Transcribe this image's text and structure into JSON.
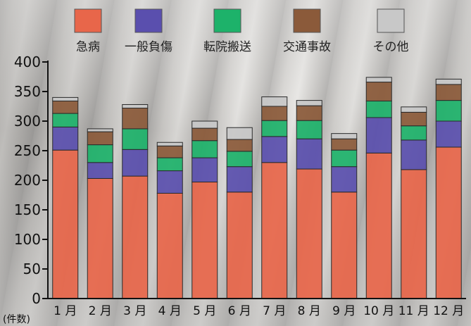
{
  "chart_data": {
    "type": "bar",
    "stacked": true,
    "title": "",
    "xlabel": "",
    "ylabel": "",
    "unit_label": "(件数)",
    "ylim": [
      0,
      400
    ],
    "yticks": [
      0,
      50,
      100,
      150,
      200,
      250,
      300,
      350,
      400
    ],
    "grid": false,
    "legend_position": "top",
    "categories": [
      "1 月",
      "2 月",
      "3 月",
      "4 月",
      "5 月",
      "6 月",
      "7 月",
      "8 月",
      "9 月",
      "10 月",
      "11 月",
      "12 月"
    ],
    "series": [
      {
        "name": "急病",
        "color": "#e8664a",
        "values": [
          251,
          203,
          207,
          178,
          197,
          180,
          230,
          219,
          180,
          246,
          218,
          256
        ]
      },
      {
        "name": "一般負傷",
        "color": "#5a4fae",
        "values": [
          39,
          27,
          45,
          38,
          41,
          43,
          44,
          51,
          43,
          60,
          50,
          44
        ]
      },
      {
        "name": "転院搬送",
        "color": "#1db26a",
        "values": [
          23,
          30,
          35,
          22,
          29,
          26,
          27,
          31,
          28,
          28,
          24,
          35
        ]
      },
      {
        "name": "交通事故",
        "color": "#8b5a3a",
        "values": [
          21,
          22,
          35,
          20,
          21,
          20,
          24,
          25,
          19,
          32,
          23,
          27
        ]
      },
      {
        "name": "その他",
        "color": "#c8c8c8",
        "values": [
          6,
          5,
          6,
          6,
          12,
          20,
          16,
          9,
          9,
          8,
          9,
          9
        ]
      }
    ]
  }
}
